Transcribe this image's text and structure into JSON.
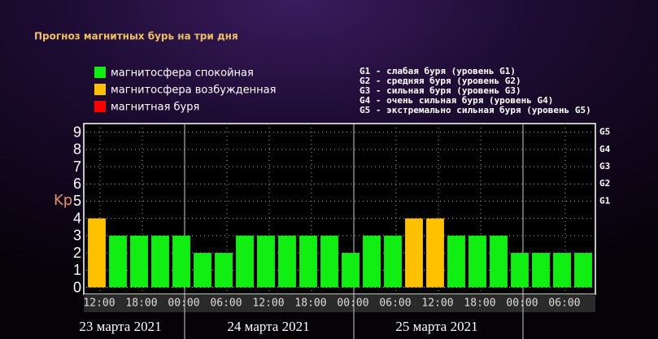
{
  "chart_data": {
    "type": "bar",
    "title": "Прогноз магнитных бурь на три дня",
    "legend": [
      {
        "name": "магнитосфера спокойная",
        "color": "#11ee11"
      },
      {
        "name": "магнитосфера возбужденная",
        "color": "#ffc000"
      },
      {
        "name": "магнитная буря",
        "color": "#ff0000"
      }
    ],
    "g_levels": [
      "G1 - слабая буря (уровень G1)",
      "G2 - средняя буря (уровень G2)",
      "G3 - сильная буря (уровень G3)",
      "G4 - очень сильная буря (уровень G4)",
      "G5 - экстремально сильная буря (уровень G5)"
    ],
    "ylabel": "Kp",
    "categories": [
      "12:00",
      null,
      "18:00",
      null,
      "00:00",
      null,
      "06:00",
      null,
      "12:00",
      null,
      "18:00",
      null,
      "00:00",
      null,
      "06:00",
      null,
      "12:00",
      null,
      "18:00",
      null,
      "00:00",
      null,
      "06:00",
      null
    ],
    "values": [
      4,
      3,
      3,
      3,
      3,
      2,
      2,
      3,
      3,
      3,
      3,
      3,
      2,
      3,
      3,
      4,
      4,
      3,
      3,
      3,
      2,
      2,
      2,
      2
    ],
    "colors": [
      "#ffc000",
      "#11ee11",
      "#11ee11",
      "#11ee11",
      "#11ee11",
      "#11ee11",
      "#11ee11",
      "#11ee11",
      "#11ee11",
      "#11ee11",
      "#11ee11",
      "#11ee11",
      "#11ee11",
      "#11ee11",
      "#11ee11",
      "#ffc000",
      "#ffc000",
      "#11ee11",
      "#11ee11",
      "#11ee11",
      "#11ee11",
      "#11ee11",
      "#11ee11",
      "#11ee11"
    ],
    "days": [
      "23 марта 2021",
      "24 марта 2021",
      "25 марта 2021"
    ],
    "ylim": [
      -0.4,
      9.5
    ],
    "yticks": [
      0,
      1,
      2,
      3,
      4,
      5,
      6,
      7,
      8,
      9
    ],
    "y2ticks": [
      {
        "value": 5,
        "label": "G1"
      },
      {
        "value": 6,
        "label": "G2"
      },
      {
        "value": 7,
        "label": "G3"
      },
      {
        "value": 8,
        "label": "G4"
      },
      {
        "value": 9,
        "label": "G5"
      }
    ],
    "grid": true
  }
}
